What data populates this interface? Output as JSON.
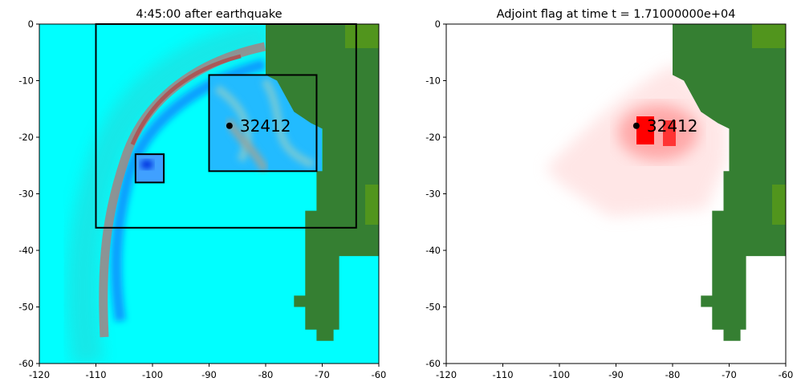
{
  "chart_data": [
    {
      "type": "heatmap",
      "title": "4:45:00 after earthquake",
      "xlim": [
        -120,
        -60
      ],
      "ylim": [
        -60,
        0
      ],
      "xticks": [
        -120,
        -110,
        -100,
        -90,
        -80,
        -70,
        -60
      ],
      "yticks": [
        0,
        -10,
        -20,
        -30,
        -40,
        -50,
        -60
      ],
      "field": "surface elevation (cyan background, red/gray wave front, blue trough)",
      "regions": [
        {
          "x": [
            -110,
            -64
          ],
          "y": [
            -36,
            0
          ]
        },
        {
          "x": [
            -103,
            -98
          ],
          "y": [
            -28,
            -23
          ]
        },
        {
          "x": [
            -90,
            -71
          ],
          "y": [
            -26,
            -9
          ]
        },
        {
          "x": [
            -81,
            -81
          ],
          "y": [
            -26,
            -9
          ]
        },
        {
          "x": [
            -90,
            -71
          ],
          "y": [
            -18,
            -18
          ]
        }
      ],
      "gauge": {
        "label": "32412",
        "x": -86.4,
        "y": -17.98
      }
    },
    {
      "type": "heatmap",
      "title": "Adjoint flag at time t = 1.71000000e+04",
      "xlim": [
        -120,
        -60
      ],
      "ylim": [
        -60,
        0
      ],
      "xticks": [
        -120,
        -110,
        -100,
        -90,
        -80,
        -70,
        -60
      ],
      "yticks": [
        0,
        -10,
        -20,
        -30,
        -40,
        -50,
        -60
      ],
      "field": "adjoint magnitude (white to red)",
      "gauge": {
        "label": "32412",
        "x": -86.4,
        "y": -17.98
      }
    }
  ],
  "colors": {
    "water": "#00ffff",
    "land": "#357f32",
    "land_light": "#5e9e14",
    "wave_red": "#c04040",
    "wave_gray": "#8a9a9a",
    "trough": "#0066ff",
    "adjoint": "#ff0000"
  },
  "land_outline": [
    [
      -80,
      0
    ],
    [
      -80,
      -9
    ],
    [
      -78,
      -10
    ],
    [
      -75,
      -15.5
    ],
    [
      -72,
      -17.5
    ],
    [
      -70,
      -18.5
    ],
    [
      -70,
      -26
    ],
    [
      -71,
      -26
    ],
    [
      -71,
      -33
    ],
    [
      -73,
      -33
    ],
    [
      -73,
      -48
    ],
    [
      -75,
      -48
    ],
    [
      -75,
      -50
    ],
    [
      -73,
      -50
    ],
    [
      -73,
      -54
    ],
    [
      -71,
      -54
    ],
    [
      -71,
      -56
    ],
    [
      -68,
      -56
    ],
    [
      -68,
      -54
    ],
    [
      -67,
      -54
    ],
    [
      -67,
      -41
    ],
    [
      -60,
      -41
    ],
    [
      -60,
      0
    ]
  ]
}
